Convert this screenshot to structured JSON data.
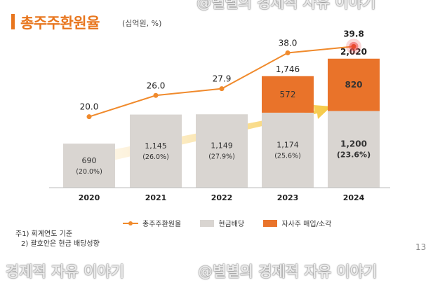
{
  "title": "총주주환원율",
  "unit": "(십억원, %)",
  "chart_data": {
    "type": "bar",
    "categories": [
      "2020",
      "2021",
      "2022",
      "2023",
      "2024"
    ],
    "series": [
      {
        "name": "현금배당",
        "kind": "bar",
        "values": [
          690,
          1145,
          1149,
          1174,
          1200
        ],
        "labels": [
          "690",
          "1,145",
          "1,149",
          "1,174",
          "1,200"
        ],
        "sublabels": [
          "(20.0%)",
          "(26.0%)",
          "(27.9%)",
          "(25.6%)",
          "(23.6%)"
        ]
      },
      {
        "name": "자사주 매입/소각",
        "kind": "bar",
        "values": [
          0,
          0,
          0,
          572,
          820
        ],
        "labels": [
          "",
          "",
          "",
          "572",
          "820"
        ]
      },
      {
        "name": "총주주환원율",
        "kind": "line",
        "values": [
          20.0,
          26.0,
          27.9,
          38.0,
          39.8
        ],
        "labels": [
          "20.0",
          "26.0",
          "27.9",
          "38.0",
          "39.8"
        ]
      }
    ],
    "totals": [
      "",
      "",
      "",
      "1,746",
      "2,020"
    ],
    "ylim_bar": [
      0,
      2500
    ],
    "ylim_line": [
      0,
      45
    ],
    "highlight_index": 4,
    "trend_arrow": true,
    "legend_position": "bottom",
    "grid": false
  },
  "legend": [
    "총주주환원율",
    "현금배당",
    "자사주 매입/소각"
  ],
  "notes": [
    "주1) 회계연도 기준",
    "2) 괄호안은 현금 배당성향"
  ],
  "page_number": "13",
  "watermarks": {
    "top": "@별별의 경제적 자유 이야기",
    "bottom_left": "경제적 자유 이야기",
    "bottom_right": "@별별의 경제적 자유 이야기"
  },
  "colors": {
    "accent": "#e8761e",
    "bar_cash": "#d9d5d1",
    "bar_buyback": "#e9732a",
    "line": "#f08a2c",
    "highlight": "#ef4b4b"
  }
}
